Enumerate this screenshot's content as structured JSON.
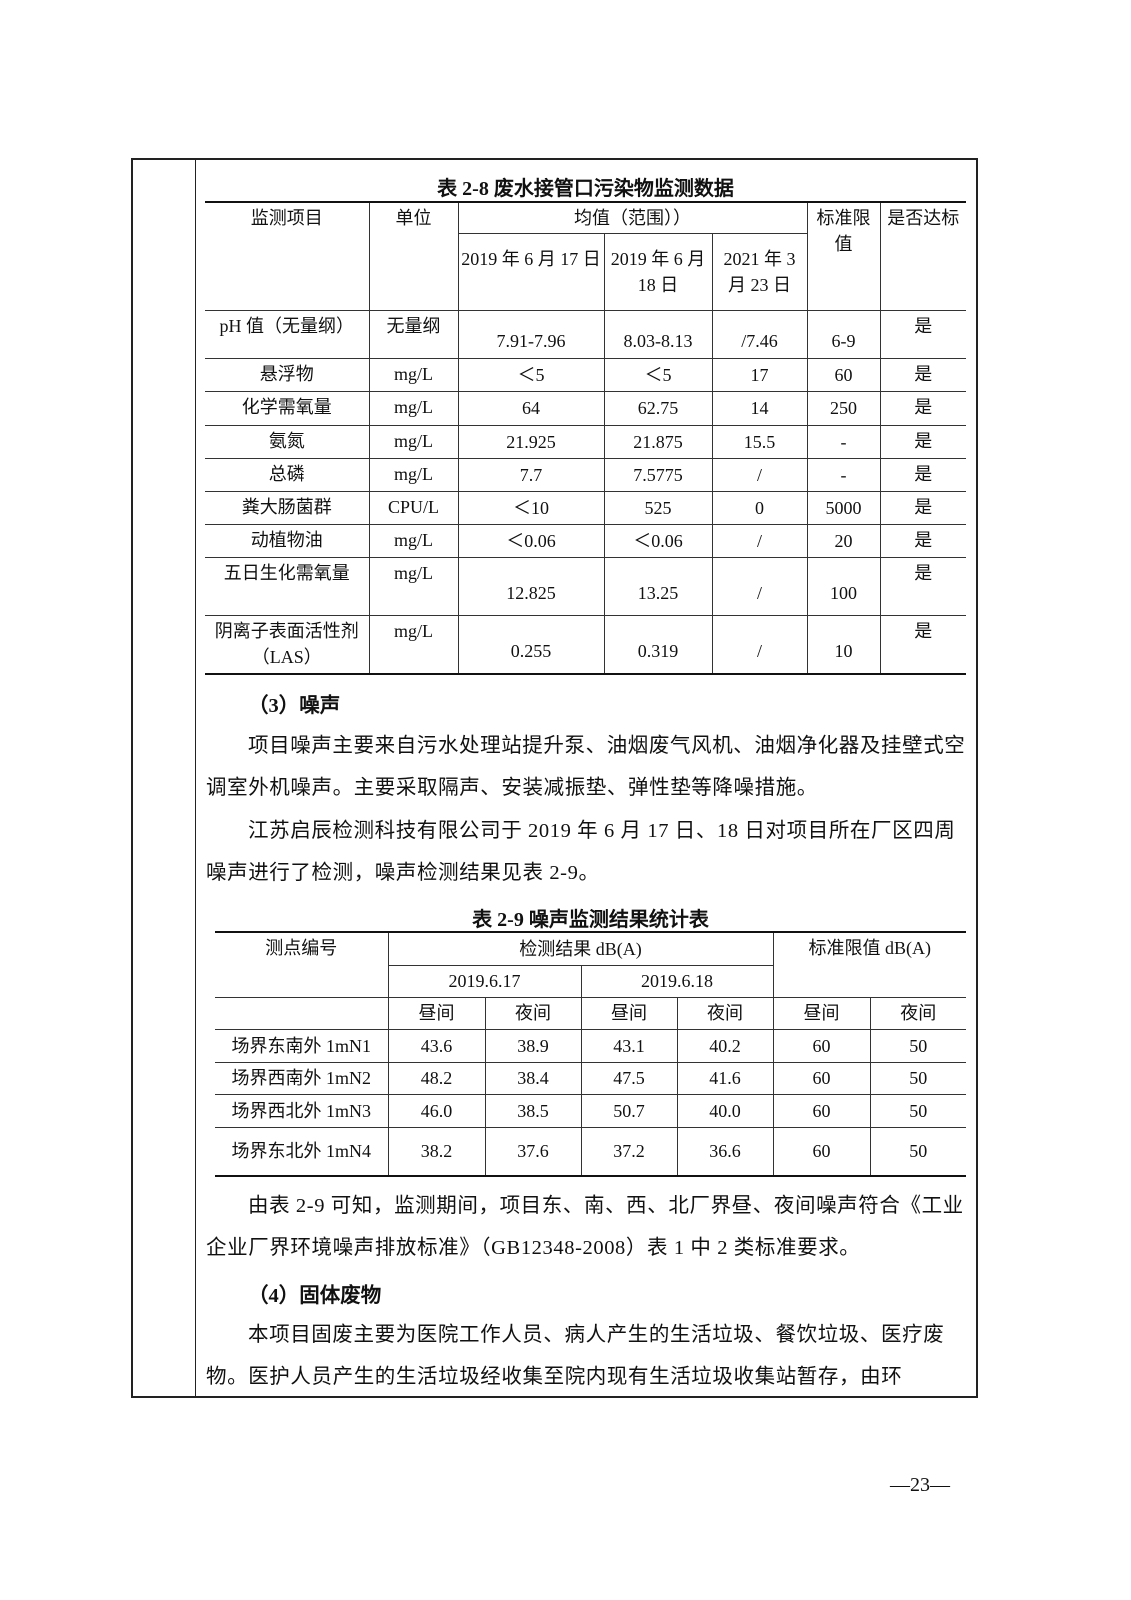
{
  "table28": {
    "caption": "表 2-8 废水接管口污染物监测数据",
    "headers": {
      "item": "监测项目",
      "unit": "单位",
      "mean": "均值（范围））",
      "d1": "2019 年 6 月 17 日",
      "d2": "2019 年 6 月 18 日",
      "d3": "2021 年 3 月 23 日",
      "limit": "标准限值",
      "ok": "是否达标"
    },
    "rows": [
      [
        "pH 值（无量纲）",
        "无量纲",
        "7.91-7.96",
        "8.03-8.13",
        "/7.46",
        "6-9",
        "是"
      ],
      [
        "悬浮物",
        "mg/L",
        "＜5",
        "＜5",
        "17",
        "60",
        "是"
      ],
      [
        "化学需氧量",
        "mg/L",
        "64",
        "62.75",
        "14",
        "250",
        "是"
      ],
      [
        "氨氮",
        "mg/L",
        "21.925",
        "21.875",
        "15.5",
        "-",
        "是"
      ],
      [
        "总磷",
        "mg/L",
        "7.7",
        "7.5775",
        "/",
        "-",
        "是"
      ],
      [
        "粪大肠菌群",
        "CPU/L",
        "＜10",
        "525",
        "0",
        "5000",
        "是"
      ],
      [
        "动植物油",
        "mg/L",
        "＜0.06",
        "＜0.06",
        "/",
        "20",
        "是"
      ],
      [
        "五日生化需氧量",
        "mg/L",
        "12.825",
        "13.25",
        "/",
        "100",
        "是"
      ],
      [
        "阴离子表面活性剂（LAS）",
        "mg/L",
        "0.255",
        "0.319",
        "/",
        "10",
        "是"
      ]
    ]
  },
  "section3": {
    "heading": "（3）噪声",
    "p1": "项目噪声主要来自污水处理站提升泵、油烟废气风机、油烟净化器及挂壁式空调室外机噪声。主要采取隔声、安装减振垫、弹性垫等降噪措施。",
    "p2": "江苏启辰检测科技有限公司于 2019 年 6 月 17 日、18 日对项目所在厂区四周噪声进行了检测，噪声检测结果见表 2-9。"
  },
  "table29": {
    "caption": "表 2-9 噪声监测结果统计表",
    "headers": {
      "point": "测点编号",
      "result": "检测结果 dB(A)",
      "limit": "标准限值 dB(A)",
      "d1": "2019.6.17",
      "d2": "2019.6.18",
      "day": "昼间",
      "night": "夜间"
    },
    "rows": [
      [
        "场界东南外 1mN1",
        "43.6",
        "38.9",
        "43.1",
        "40.2",
        "60",
        "50"
      ],
      [
        "场界西南外 1mN2",
        "48.2",
        "38.4",
        "47.5",
        "41.6",
        "60",
        "50"
      ],
      [
        "场界西北外 1mN3",
        "46.0",
        "38.5",
        "50.7",
        "40.0",
        "60",
        "50"
      ],
      [
        "场界东北外 1mN4",
        "38.2",
        "37.6",
        "37.2",
        "36.6",
        "60",
        "50"
      ]
    ]
  },
  "conclusion": "由表 2-9 可知，监测期间，项目东、南、西、北厂界昼、夜间噪声符合《工业企业厂界环境噪声排放标准》（GB12348-2008）表 1 中 2 类标准要求。",
  "section4": {
    "heading": "（4）固体废物",
    "p1": "本项目固废主要为医院工作人员、病人产生的生活垃圾、餐饮垃圾、医疗废物。医护人员产生的生活垃圾经收集至院内现有生活垃圾收集站暂存，由环"
  },
  "page_number": "—23—"
}
